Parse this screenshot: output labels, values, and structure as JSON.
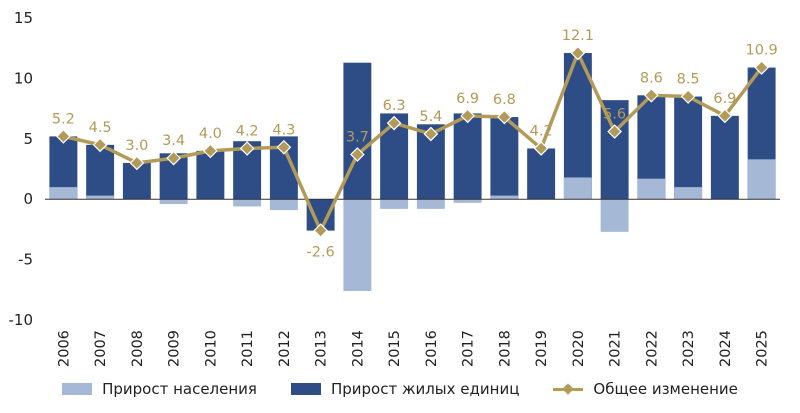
{
  "chart_data": {
    "type": "bar",
    "categories": [
      "2006",
      "2007",
      "2008",
      "2009",
      "2010",
      "2011",
      "2012",
      "2013",
      "2014",
      "2015",
      "2016",
      "2017",
      "2018",
      "2019",
      "2020",
      "2021",
      "2022",
      "2023",
      "2024",
      "2025"
    ],
    "series": [
      {
        "name": "Прирост населения",
        "kind": "bar",
        "color": "#a5b8d6",
        "values": [
          1.0,
          0.3,
          0.0,
          -0.4,
          0.0,
          -0.6,
          -0.9,
          0.0,
          -7.6,
          -0.8,
          -0.8,
          -0.3,
          0.3,
          0.0,
          1.8,
          -2.7,
          1.7,
          1.0,
          0.0,
          3.3
        ]
      },
      {
        "name": "Прирост жилых единиц",
        "kind": "bar",
        "color": "#2e4d86",
        "values": [
          5.2,
          4.5,
          3.0,
          3.8,
          4.0,
          4.8,
          5.2,
          -2.6,
          11.3,
          7.1,
          6.2,
          7.1,
          6.8,
          4.2,
          12.1,
          8.2,
          8.6,
          8.5,
          6.9,
          10.9
        ]
      },
      {
        "name": "Общее изменение",
        "kind": "line",
        "color": "#b29a58",
        "values": [
          5.2,
          4.5,
          3.0,
          3.4,
          4.0,
          4.2,
          4.3,
          -2.6,
          3.7,
          6.3,
          5.4,
          6.9,
          6.8,
          4.2,
          12.1,
          5.6,
          8.6,
          8.5,
          6.9,
          10.9
        ],
        "labels": [
          "5.2",
          "4.5",
          "3.0",
          "3.4",
          "4.0",
          "4.2",
          "4.3",
          "-2.6",
          "3.7",
          "6.3",
          "5.4",
          "6.9",
          "6.8",
          "4.2",
          "12.1",
          "5.6",
          "8.6",
          "8.5",
          "6.9",
          "10.9"
        ]
      }
    ],
    "yticks": [
      "15",
      "10",
      "5",
      "0",
      "-5",
      "-10"
    ],
    "ylim": [
      -10,
      15
    ],
    "grid": false,
    "legend_position": "bottom"
  }
}
